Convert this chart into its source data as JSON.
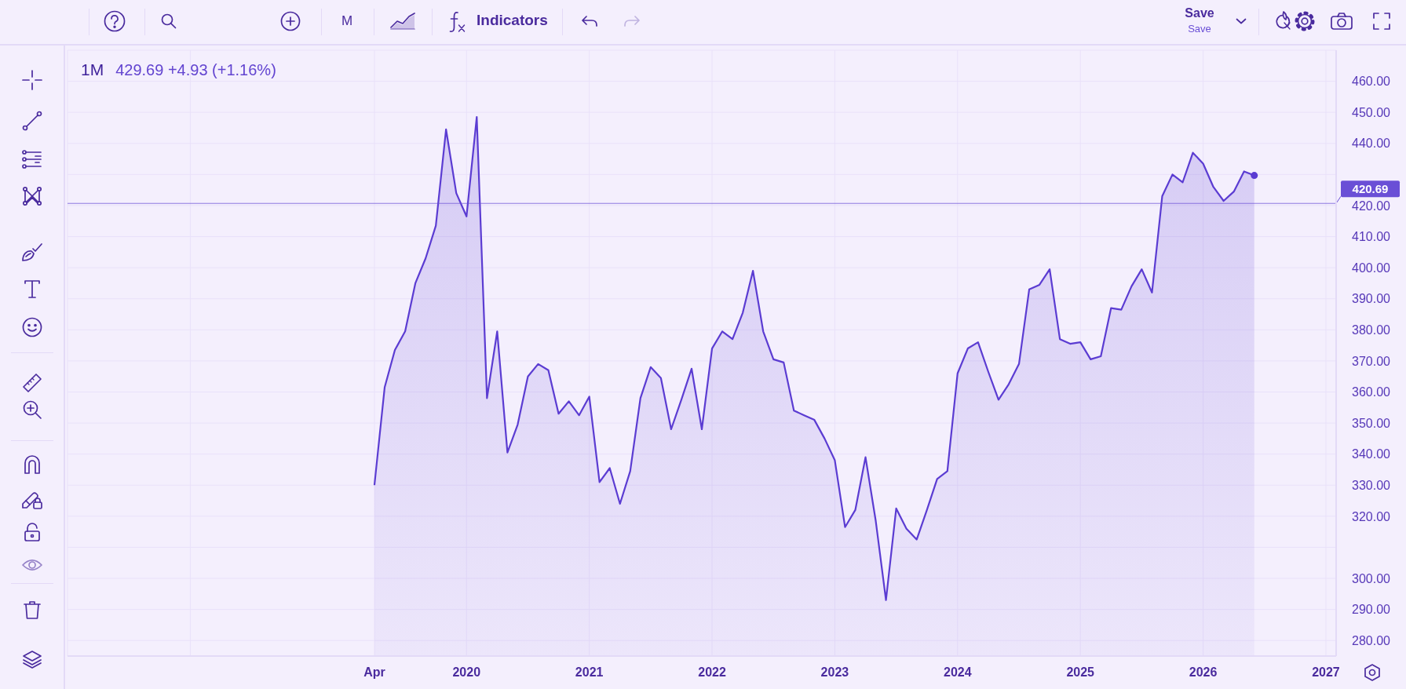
{
  "chart_data": {
    "type": "area",
    "title": "1M",
    "subtitle": "429.69 +4.93 (+1.16%)",
    "x": [
      "2019-04",
      "2019-05",
      "2019-06",
      "2019-07",
      "2019-08",
      "2019-09",
      "2019-10",
      "2019-11",
      "2019-12",
      "2020-01",
      "2020-02",
      "2020-03",
      "2020-04",
      "2020-05",
      "2020-06",
      "2020-07",
      "2020-08",
      "2020-09",
      "2020-10",
      "2020-11",
      "2020-12",
      "2021-01",
      "2021-02",
      "2021-03",
      "2021-04",
      "2021-05",
      "2021-06",
      "2021-07",
      "2021-08",
      "2021-09",
      "2021-10",
      "2021-11",
      "2021-12",
      "2022-01",
      "2022-02",
      "2022-03",
      "2022-04",
      "2022-05",
      "2022-06",
      "2022-07",
      "2022-08",
      "2022-09",
      "2022-10",
      "2022-11",
      "2022-12",
      "2023-01",
      "2023-02",
      "2023-03",
      "2023-04",
      "2023-05",
      "2023-06",
      "2023-07",
      "2023-08",
      "2023-09",
      "2023-10",
      "2023-11",
      "2023-12",
      "2024-01",
      "2024-02",
      "2024-03",
      "2024-04",
      "2024-05",
      "2024-06",
      "2024-07",
      "2024-08",
      "2024-09",
      "2024-10",
      "2024-11",
      "2024-12",
      "2025-01",
      "2025-02",
      "2025-03",
      "2025-04",
      "2025-05",
      "2025-06",
      "2025-07",
      "2025-08",
      "2025-09",
      "2025-10",
      "2025-11",
      "2025-12",
      "2026-01",
      "2026-02",
      "2026-03",
      "2026-04",
      "2026-05",
      "2026-06"
    ],
    "series": [
      {
        "color": "#5b3cd2",
        "values": [
          330,
          361.5,
          373.5,
          379.5,
          395,
          403,
          413.5,
          444.5,
          424,
          416.5,
          448.5,
          358,
          379.5,
          340.5,
          349.5,
          365,
          369,
          367,
          353,
          357,
          352.5,
          358.5,
          331,
          335.5,
          324,
          334.5,
          358,
          368,
          364.5,
          348,
          357.5,
          367.5,
          348,
          374,
          379.5,
          377,
          385.5,
          399,
          379.5,
          370.5,
          369.5,
          354,
          352.5,
          351,
          345,
          338,
          316.5,
          322,
          339,
          318.5,
          293,
          322.5,
          316,
          312.5,
          322,
          332,
          334.5,
          366,
          374,
          376,
          366.5,
          357.5,
          362.5,
          369,
          393,
          394.5,
          399.5,
          377,
          375.5,
          376,
          370.5,
          371.5,
          387,
          386.5,
          394,
          399.5,
          392,
          423,
          430,
          427.5,
          437,
          433.5,
          426,
          421.5,
          424.5,
          431,
          429.69
        ]
      },
      {
        "type": "scatter",
        "color": "#5b3cd2",
        "x": [
          "2026-06"
        ],
        "values": [
          429.69
        ],
        "marker": "circle"
      }
    ],
    "xlim": [
      "2016-10",
      "2027-02"
    ],
    "xticks": [
      {
        "value": "2017-10",
        "label": null
      },
      {
        "value": "2019-04",
        "label": "Apr"
      },
      "2020",
      "2021",
      "2022",
      "2023",
      "2024",
      "2025",
      "2026",
      "2027"
    ],
    "ylim": [
      275,
      470
    ],
    "yticks": [
      {
        "value": 460,
        "label": "460.00"
      },
      {
        "value": 450,
        "label": "450.00"
      },
      {
        "value": 440,
        "label": "440.00"
      },
      {
        "value": 430,
        "label": null
      },
      {
        "value": 420,
        "label": "420.00"
      },
      {
        "value": 410,
        "label": "410.00"
      },
      {
        "value": 400,
        "label": "400.00"
      },
      {
        "value": 390,
        "label": "390.00"
      },
      {
        "value": 380,
        "label": "380.00"
      },
      {
        "value": 370,
        "label": "370.00"
      },
      {
        "value": 360,
        "label": "360.00"
      },
      {
        "value": 350,
        "label": "350.00"
      },
      {
        "value": 340,
        "label": "340.00"
      },
      {
        "value": 330,
        "label": "330.00"
      },
      {
        "value": 320,
        "label": "320.00"
      },
      {
        "value": 310,
        "label": null
      },
      {
        "value": 300,
        "label": "300.00"
      },
      {
        "value": 290,
        "label": "290.00"
      },
      {
        "value": 280,
        "label": "280.00"
      }
    ],
    "grid": true,
    "ref_lines": [
      {
        "axis": "y",
        "value": 420.69,
        "label": "420.69",
        "color": "#6a4fd6"
      }
    ],
    "annotations": [
      "M",
      "Indicators",
      "Save",
      "Save"
    ]
  }
}
